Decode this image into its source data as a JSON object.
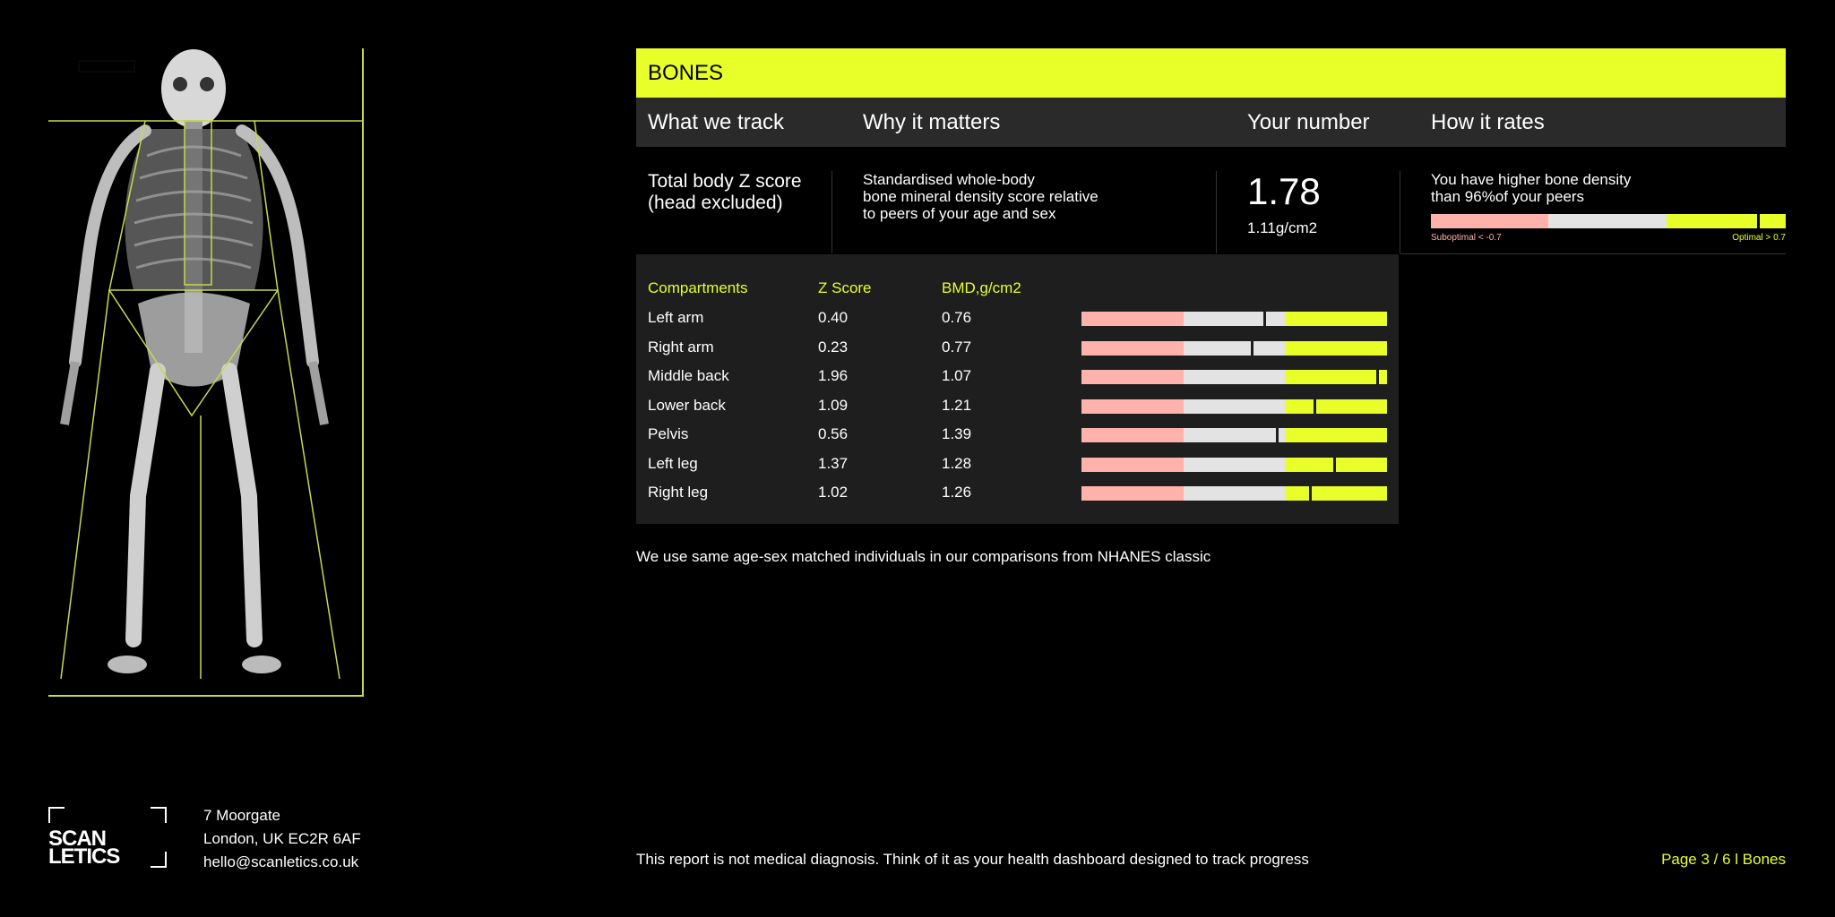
{
  "section_title": "BONES",
  "columns": {
    "track": "What we track",
    "why": "Why it matters",
    "number": "Your number",
    "rates": "How it rates"
  },
  "summary": {
    "metric_line1": "Total body Z score",
    "metric_line2": "(head excluded)",
    "why_line1": "Standardised whole-body",
    "why_line2": "bone mineral density score relative",
    "why_line3": "to peers of your age and sex",
    "value": "1.78",
    "sub_value": "1.11g/cm2",
    "rating_line1": "You have higher bone density",
    "rating_line2": "than 96%of your peers",
    "suboptimal_label": "Suboptimal < -0.7",
    "optimal_label": "Optimal > 0.7",
    "rating_marker_fraction": 0.92
  },
  "compartments": {
    "headers": {
      "name": "Compartments",
      "z": "Z Score",
      "bmd": "BMD,g/cm2"
    },
    "rows": [
      {
        "name": "Left arm",
        "z": "0.40",
        "bmd": "0.76",
        "marker_fraction": 0.595
      },
      {
        "name": "Right arm",
        "z": "0.23",
        "bmd": "0.77",
        "marker_fraction": 0.555
      },
      {
        "name": "Middle back",
        "z": "1.96",
        "bmd": "1.07",
        "marker_fraction": 0.965
      },
      {
        "name": "Lower back",
        "z": "1.09",
        "bmd": "1.21",
        "marker_fraction": 0.76
      },
      {
        "name": "Pelvis",
        "z": "0.56",
        "bmd": "1.39",
        "marker_fraction": 0.635
      },
      {
        "name": "Left leg",
        "z": "1.37",
        "bmd": "1.28",
        "marker_fraction": 0.825
      },
      {
        "name": "Right leg",
        "z": "1.02",
        "bmd": "1.26",
        "marker_fraction": 0.745
      }
    ]
  },
  "comparison_note": "We use same age-sex matched individuals in our comparisons from NHANES classic",
  "footer": {
    "logo_line1": "SCAN",
    "logo_line2": "LETICS",
    "address1": "7 Moorgate",
    "address2": "London, UK EC2R 6AF",
    "email": "hello@scanletics.co.uk",
    "disclaimer": "This report is not medical diagnosis. Think of it as your health dashboard designed to track progress",
    "page": "Page 3 / 6 l Bones"
  },
  "colors": {
    "accent": "#e8ff2a",
    "suboptimal": "#ffb1ab",
    "neutral": "#e3e3e3"
  }
}
